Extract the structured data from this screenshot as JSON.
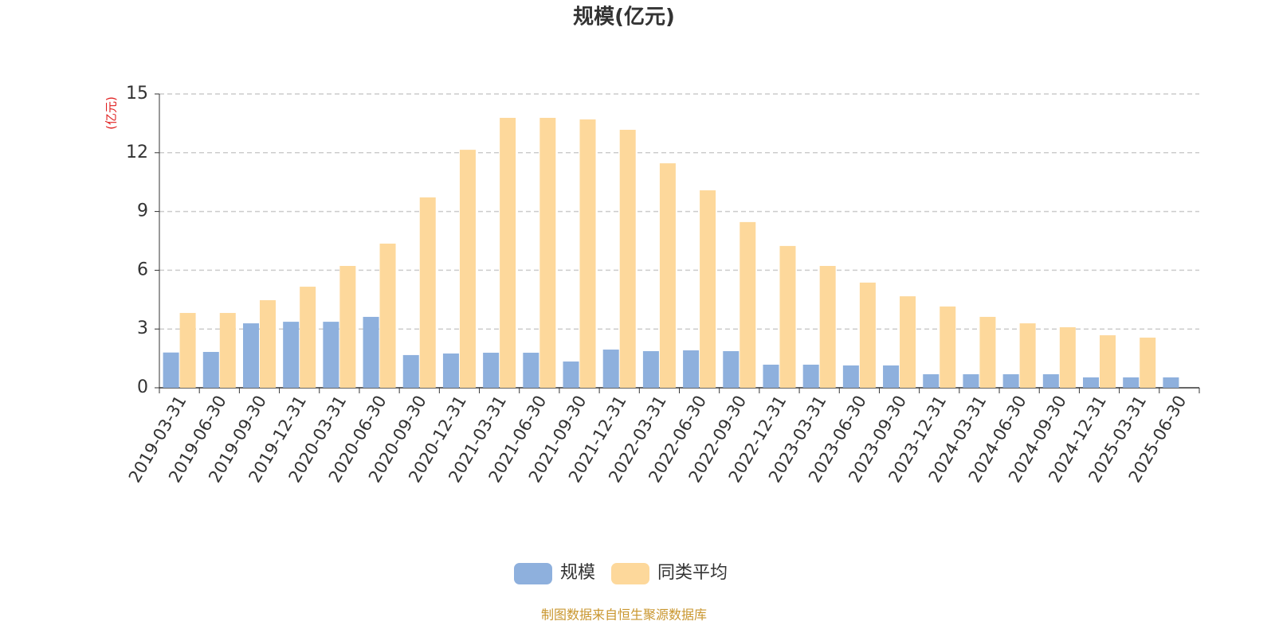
{
  "chart_data": {
    "type": "bar",
    "title": "规模(亿元)",
    "y_axis_label": "(亿元)",
    "source": "制图数据来自恒生聚源数据库",
    "categories": [
      "2019-03-31",
      "2019-06-30",
      "2019-09-30",
      "2019-12-31",
      "2020-03-31",
      "2020-06-30",
      "2020-09-30",
      "2020-12-31",
      "2021-03-31",
      "2021-06-30",
      "2021-09-30",
      "2021-12-31",
      "2022-03-31",
      "2022-06-30",
      "2022-09-30",
      "2022-12-31",
      "2023-03-31",
      "2023-06-30",
      "2023-09-30",
      "2023-12-31",
      "2024-03-31",
      "2024-06-30",
      "2024-09-30",
      "2024-12-31",
      "2025-03-31",
      "2025-06-30"
    ],
    "series": [
      {
        "name": "规模",
        "color": "#8eb0dd",
        "values": [
          1.8,
          1.83,
          3.29,
          3.37,
          3.37,
          3.62,
          1.67,
          1.75,
          1.79,
          1.79,
          1.34,
          1.95,
          1.87,
          1.91,
          1.87,
          1.18,
          1.18,
          1.14,
          1.14,
          0.69,
          0.69,
          0.69,
          0.69,
          0.53,
          0.53,
          0.53
        ]
      },
      {
        "name": "同类平均",
        "color": "#fdd89b",
        "values": [
          3.82,
          3.82,
          4.47,
          5.16,
          6.22,
          7.36,
          9.72,
          12.15,
          13.78,
          13.78,
          13.7,
          13.17,
          11.46,
          10.08,
          8.46,
          7.24,
          6.22,
          5.37,
          4.67,
          4.15,
          3.62,
          3.29,
          3.09,
          2.68,
          2.56,
          null
        ]
      }
    ],
    "ylim": [
      0,
      15
    ],
    "yticks": [
      0,
      3,
      6,
      9,
      12,
      15
    ],
    "grid": true
  }
}
